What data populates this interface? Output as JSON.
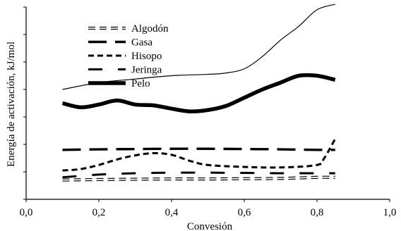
{
  "chart_data": {
    "type": "line",
    "xlabel": "Convesión",
    "ylabel": "Energía de activación, kJ/mol",
    "xlim": [
      0.0,
      1.0
    ],
    "ylim": [
      0,
      7
    ],
    "x_ticks": [
      "0,0",
      "0,2",
      "0,4",
      "0,6",
      "0,8",
      "1,0"
    ],
    "y_ticks_labeled": false,
    "legend_position": "top-left",
    "series": [
      {
        "name": "Algodón",
        "style": "double-dash-hollow",
        "x": [
          0.1,
          0.2,
          0.3,
          0.4,
          0.5,
          0.6,
          0.7,
          0.8,
          0.85
        ],
        "y": [
          0.7,
          0.72,
          0.73,
          0.74,
          0.74,
          0.75,
          0.76,
          0.8,
          0.8
        ]
      },
      {
        "name": "Gasa",
        "style": "long-dash",
        "x": [
          0.1,
          0.2,
          0.3,
          0.4,
          0.5,
          0.6,
          0.7,
          0.8,
          0.85
        ],
        "y": [
          1.8,
          1.82,
          1.83,
          1.84,
          1.84,
          1.83,
          1.82,
          1.8,
          1.8
        ]
      },
      {
        "name": "Hisopo",
        "style": "short-dash",
        "x": [
          0.1,
          0.15,
          0.2,
          0.25,
          0.3,
          0.35,
          0.4,
          0.45,
          0.5,
          0.6,
          0.7,
          0.8,
          0.82,
          0.85
        ],
        "y": [
          1.05,
          1.1,
          1.25,
          1.45,
          1.6,
          1.68,
          1.62,
          1.4,
          1.25,
          1.18,
          1.16,
          1.25,
          1.5,
          2.2
        ]
      },
      {
        "name": "Jeringa",
        "style": "dash-gap",
        "x": [
          0.1,
          0.2,
          0.3,
          0.4,
          0.5,
          0.6,
          0.7,
          0.8,
          0.85
        ],
        "y": [
          0.8,
          0.9,
          0.95,
          0.97,
          0.97,
          0.96,
          0.95,
          0.95,
          0.95
        ]
      },
      {
        "name": "Pelo",
        "style": "thick-solid",
        "x": [
          0.1,
          0.15,
          0.2,
          0.25,
          0.3,
          0.35,
          0.4,
          0.45,
          0.5,
          0.55,
          0.6,
          0.65,
          0.7,
          0.75,
          0.8,
          0.85
        ],
        "y": [
          3.5,
          3.35,
          3.45,
          3.6,
          3.45,
          3.42,
          3.3,
          3.2,
          3.25,
          3.4,
          3.7,
          4.0,
          4.25,
          4.5,
          4.5,
          4.35
        ]
      },
      {
        "name": "",
        "style": "thin-solid",
        "x": [
          0.1,
          0.2,
          0.3,
          0.4,
          0.5,
          0.55,
          0.6,
          0.65,
          0.7,
          0.75,
          0.8,
          0.85
        ],
        "y": [
          4.0,
          4.25,
          4.38,
          4.5,
          4.55,
          4.6,
          4.75,
          5.2,
          5.8,
          6.3,
          6.9,
          7.1
        ]
      }
    ]
  }
}
